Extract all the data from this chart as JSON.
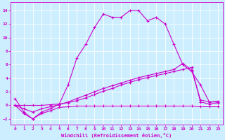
{
  "xlabel": "Windchill (Refroidissement éolien,°C)",
  "background_color": "#cceeff",
  "line_color": "#cc00cc",
  "xlim": [
    -0.5,
    23.5
  ],
  "ylim": [
    -2.8,
    15.2
  ],
  "yticks": [
    -2,
    0,
    2,
    4,
    6,
    8,
    10,
    12,
    14
  ],
  "xticks": [
    0,
    1,
    2,
    3,
    4,
    5,
    6,
    7,
    8,
    9,
    10,
    11,
    12,
    13,
    14,
    15,
    16,
    17,
    18,
    19,
    20,
    21,
    22,
    23
  ],
  "series1_x": [
    0,
    1,
    2,
    3,
    4,
    5,
    6,
    7,
    8,
    9,
    10,
    11,
    12,
    13,
    14,
    15,
    16,
    17,
    18,
    19,
    20,
    21,
    22,
    23
  ],
  "series1_y": [
    1.0,
    -1.0,
    -2.0,
    -1.0,
    -0.5,
    0.2,
    3.0,
    7.0,
    9.0,
    11.5,
    13.5,
    13.0,
    13.0,
    14.0,
    14.0,
    12.5,
    13.0,
    12.0,
    9.0,
    6.0,
    5.0,
    3.0,
    0.5,
    0.5
  ],
  "series2_x": [
    0,
    1,
    2,
    3,
    4,
    5,
    6,
    7,
    8,
    9,
    10,
    11,
    12,
    13,
    14,
    15,
    16,
    17,
    18,
    19,
    20,
    21,
    22,
    23
  ],
  "series2_y": [
    0.0,
    -1.2,
    -2.0,
    -1.2,
    -0.8,
    -0.3,
    -0.2,
    -0.1,
    -0.1,
    -0.1,
    -0.1,
    -0.1,
    -0.1,
    -0.1,
    -0.1,
    -0.1,
    -0.1,
    -0.1,
    -0.1,
    -0.1,
    -0.1,
    -0.2,
    -0.2,
    -0.2
  ],
  "series3_x": [
    0,
    1,
    2,
    3,
    4,
    5,
    6,
    7,
    8,
    9,
    10,
    11,
    12,
    13,
    14,
    15,
    16,
    17,
    18,
    19,
    20,
    21,
    22,
    23
  ],
  "series3_y": [
    0.0,
    0.0,
    0.0,
    0.0,
    0.1,
    0.2,
    0.4,
    0.7,
    1.1,
    1.6,
    2.1,
    2.5,
    3.0,
    3.4,
    3.8,
    4.1,
    4.4,
    4.7,
    5.0,
    5.3,
    5.6,
    0.5,
    0.2,
    0.4
  ],
  "series4_x": [
    0,
    1,
    2,
    3,
    4,
    5,
    6,
    7,
    8,
    9,
    10,
    11,
    12,
    13,
    14,
    15,
    16,
    17,
    18,
    19,
    20,
    21,
    22,
    23
  ],
  "series4_y": [
    0.0,
    -0.5,
    -1.0,
    -0.5,
    -0.2,
    0.1,
    0.5,
    1.0,
    1.5,
    2.0,
    2.5,
    2.9,
    3.3,
    3.7,
    4.1,
    4.4,
    4.7,
    5.0,
    5.3,
    6.2,
    5.2,
    0.8,
    0.5,
    0.6
  ]
}
